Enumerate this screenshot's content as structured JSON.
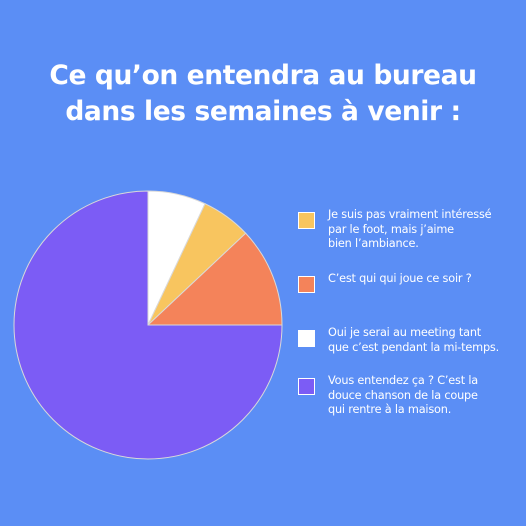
{
  "title_lines": [
    "Ce qu’on entendra au bureau",
    "dans les semaines à venir :"
  ],
  "chart_data": {
    "type": "pie",
    "slices": [
      {
        "label": "Oui je serai au meeting tant que c’est pendant la mi-temps.",
        "value": 7,
        "color": "#ffffff"
      },
      {
        "label": "Je suis pas vraiment intéressé par le foot, mais j’aime bien l’ambiance.",
        "value": 6,
        "color": "#f8c55f"
      },
      {
        "label": "C’est qui qui joue ce soir ?",
        "value": 12,
        "color": "#f4835a"
      },
      {
        "label": "Vous entendez ça ? C’est la douce chanson de la coupe qui rentre à la maison.",
        "value": 75,
        "color": "#7c5cf5"
      }
    ]
  },
  "legend": [
    {
      "lines": [
        "Je suis pas vraiment intéressé",
        "par le foot, mais j’aime",
        "bien l’ambiance."
      ],
      "color": "#f8c55f"
    },
    {
      "lines": [
        "C’est qui qui joue ce soir ?"
      ],
      "color": "#f4835a"
    },
    {
      "lines": [
        "Oui je serai au meeting tant",
        "que c’est pendant la mi-temps."
      ],
      "color": "#ffffff"
    },
    {
      "lines": [
        "Vous entendez ça ? C’est la",
        "douce chanson de la coupe",
        "qui rentre à la maison."
      ],
      "color": "#7c5cf5"
    }
  ]
}
